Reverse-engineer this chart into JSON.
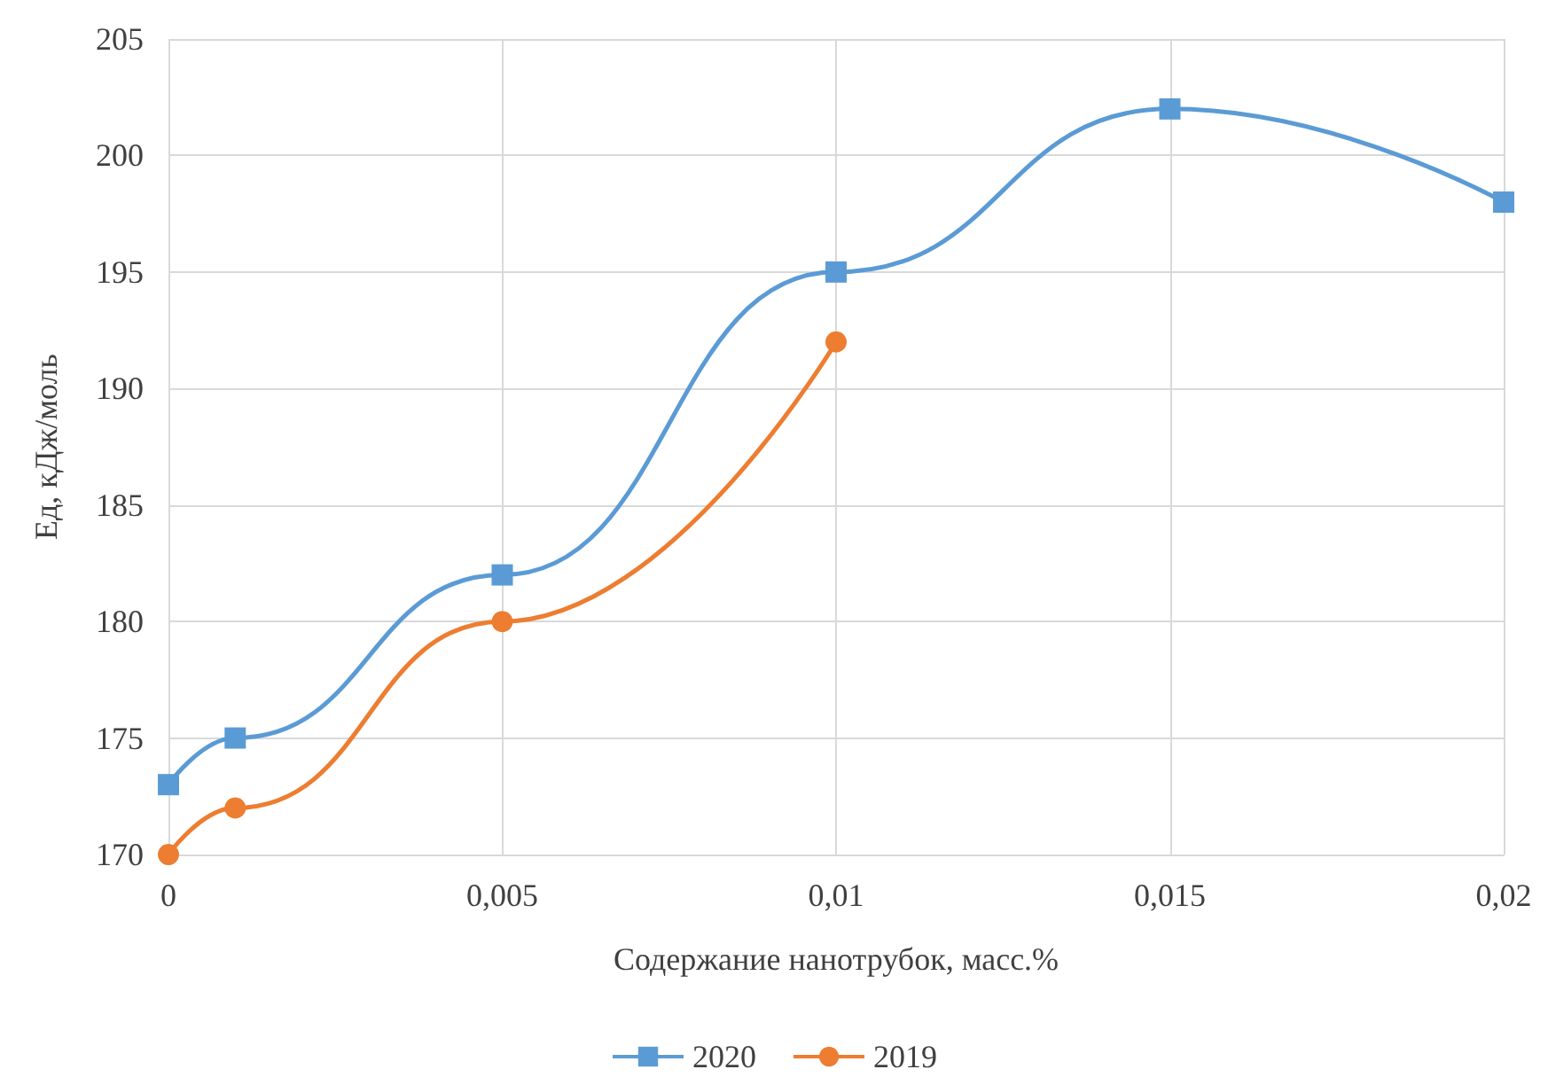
{
  "chart_data": {
    "type": "line",
    "xlabel": "Содержание нанотрубок, масс.%",
    "ylabel": "Ед, кДж/моль",
    "xlim": [
      0,
      0.02
    ],
    "xticks": [
      {
        "value": 0,
        "label": "0"
      },
      {
        "value": 0.005,
        "label": "0,005"
      },
      {
        "value": 0.01,
        "label": "0,01"
      },
      {
        "value": 0.015,
        "label": "0,015"
      },
      {
        "value": 0.02,
        "label": "0,02"
      }
    ],
    "ylim": [
      170,
      205
    ],
    "yticks": [
      170,
      175,
      180,
      185,
      190,
      195,
      200,
      205
    ],
    "grid": true,
    "legend": "bottom",
    "series": [
      {
        "name": "2020",
        "color": "#5b9bd5",
        "marker": "square",
        "x": [
          0,
          0.001,
          0.005,
          0.01,
          0.015,
          0.02
        ],
        "values": [
          173,
          175,
          182,
          195,
          202,
          198
        ]
      },
      {
        "name": "2019",
        "color": "#ed7d31",
        "marker": "circle",
        "x": [
          0,
          0.001,
          0.005,
          0.01
        ],
        "values": [
          170,
          172,
          180,
          192
        ]
      }
    ]
  }
}
